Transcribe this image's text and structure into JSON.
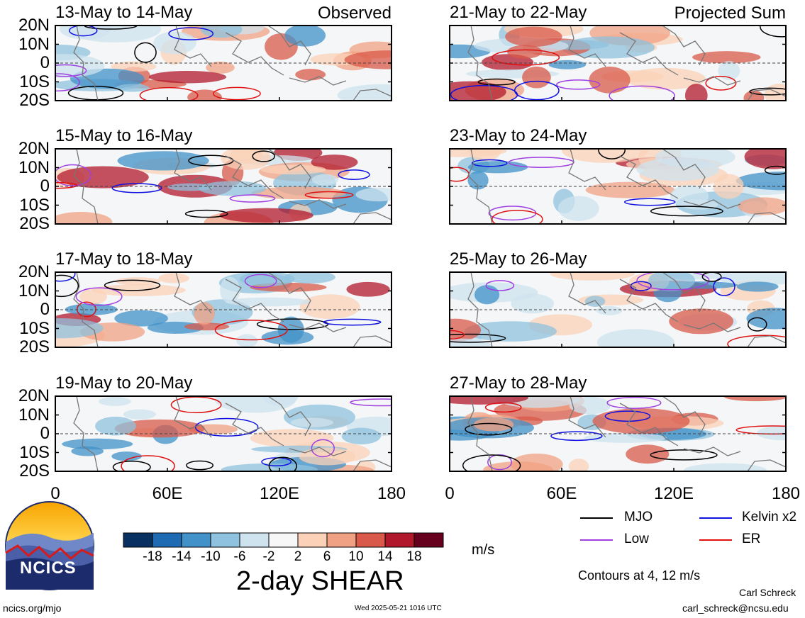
{
  "panels": [
    {
      "title": "13-May to 14-May",
      "tag": "Observed"
    },
    {
      "title": "15-May to 16-May",
      "tag": ""
    },
    {
      "title": "17-May to 18-May",
      "tag": ""
    },
    {
      "title": "19-May to 20-May",
      "tag": ""
    },
    {
      "title": "21-May to 22-May",
      "tag": "Projected Sum"
    },
    {
      "title": "23-May to 24-May",
      "tag": ""
    },
    {
      "title": "25-May to 26-May",
      "tag": ""
    },
    {
      "title": "27-May to 28-May",
      "tag": ""
    }
  ],
  "lat_labels": [
    "20N",
    "10N",
    "0",
    "10S",
    "20S"
  ],
  "lon_labels": [
    "0",
    "60E",
    "120E",
    "180"
  ],
  "legend": {
    "mjo": "MJO",
    "kelvin": "Kelvin x2",
    "low": "Low",
    "er": "ER",
    "colors": {
      "mjo": "#000000",
      "kelvin": "#1010e0",
      "low": "#a040e0",
      "er": "#e01010"
    },
    "contours_note": "Contours at 4, 12 m/s"
  },
  "colorbar": {
    "labels": [
      "-18",
      "-14",
      "-10",
      "-6",
      "-2",
      "2",
      "6",
      "10",
      "14",
      "18"
    ],
    "colors": [
      "#083060",
      "#1f6bb3",
      "#4291c8",
      "#8fc2de",
      "#cfe3ef",
      "#f7f7f7",
      "#fbd1b8",
      "#f1a183",
      "#d95a4a",
      "#b1182b",
      "#67001f"
    ],
    "unit": "m/s",
    "title": "2-day SHEAR"
  },
  "logo": {
    "text": "NCICS"
  },
  "footer": {
    "left": "ncics.org/mjo",
    "center": "Wed 2025-05-21 1016 UTC",
    "author": "Carl Schreck",
    "email": "carl_schreck@ncsu.edu"
  }
}
